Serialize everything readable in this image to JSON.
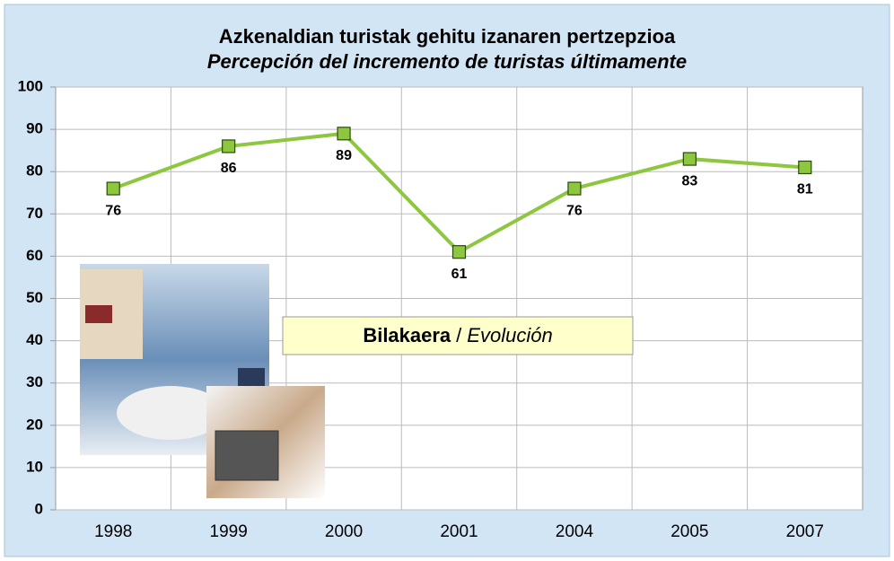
{
  "chart_data": {
    "type": "line",
    "title": "Azkenaldian turistak gehitu izanaren pertzepzioa",
    "subtitle": "Percepción del incremento de turistas últimamente",
    "categories": [
      "1998",
      "1999",
      "2000",
      "2001",
      "2004",
      "2005",
      "2007"
    ],
    "values": [
      76,
      86,
      89,
      61,
      76,
      83,
      81
    ],
    "color": "#8dc63f",
    "ylim": [
      0,
      100
    ],
    "yticks": [
      0,
      10,
      20,
      30,
      40,
      50,
      60,
      70,
      80,
      90,
      100
    ],
    "grid": true,
    "annotation": {
      "bold": "Bilakaera",
      "separator": "/",
      "italic": "Evolución"
    }
  }
}
